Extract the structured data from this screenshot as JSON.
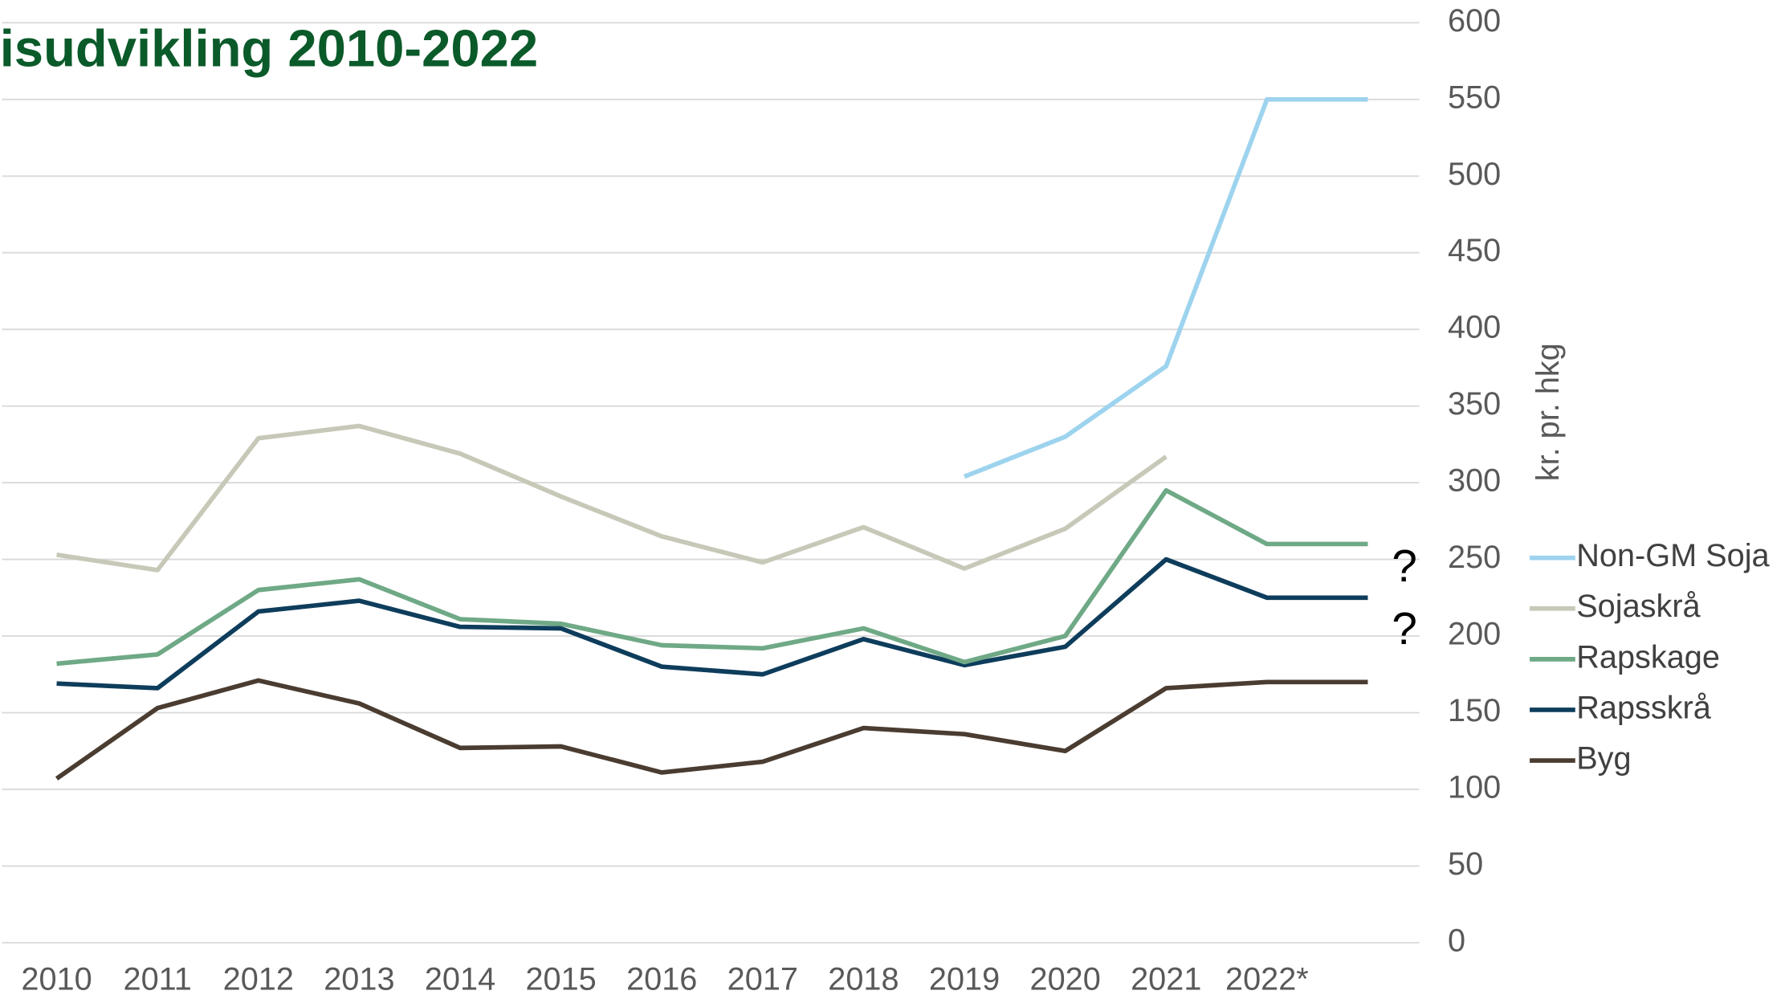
{
  "chart_data": {
    "type": "line",
    "title": "isudvikling 2010-2022",
    "y_label": "kr. pr. hkg",
    "categories": [
      "2010",
      "2011",
      "2012",
      "2013",
      "2014",
      "2015",
      "2016",
      "2017",
      "2018",
      "2019",
      "2020",
      "2021",
      "2022*",
      null
    ],
    "series": [
      {
        "name": "Non-GM Soja",
        "color": "#9dd3ee",
        "values": [
          null,
          null,
          null,
          null,
          null,
          null,
          null,
          null,
          null,
          304,
          330,
          376,
          550,
          550
        ]
      },
      {
        "name": "Sojaskrå",
        "color": "#c8c8b8",
        "values": [
          253,
          243,
          329,
          337,
          319,
          291,
          265,
          248,
          271,
          244,
          270,
          317,
          null,
          null
        ]
      },
      {
        "name": "Rapskage",
        "color": "#6fa986",
        "values": [
          182,
          188,
          230,
          237,
          211,
          208,
          194,
          192,
          205,
          183,
          200,
          295,
          260,
          260
        ]
      },
      {
        "name": "Rapsskrå",
        "color": "#0e3d5c",
        "values": [
          169,
          166,
          216,
          223,
          206,
          205,
          180,
          175,
          198,
          181,
          193,
          250,
          225,
          225
        ]
      },
      {
        "name": "Byg",
        "color": "#4a3c30",
        "values": [
          107,
          153,
          171,
          156,
          127,
          128,
          111,
          118,
          140,
          136,
          125,
          166,
          170,
          170
        ]
      }
    ],
    "annotations": [
      "?",
      "?"
    ],
    "ylim": [
      0,
      600
    ],
    "yticks": [
      0,
      50,
      100,
      150,
      200,
      250,
      300,
      350,
      400,
      450,
      500,
      550,
      600
    ],
    "grid": true,
    "legend": "right"
  }
}
